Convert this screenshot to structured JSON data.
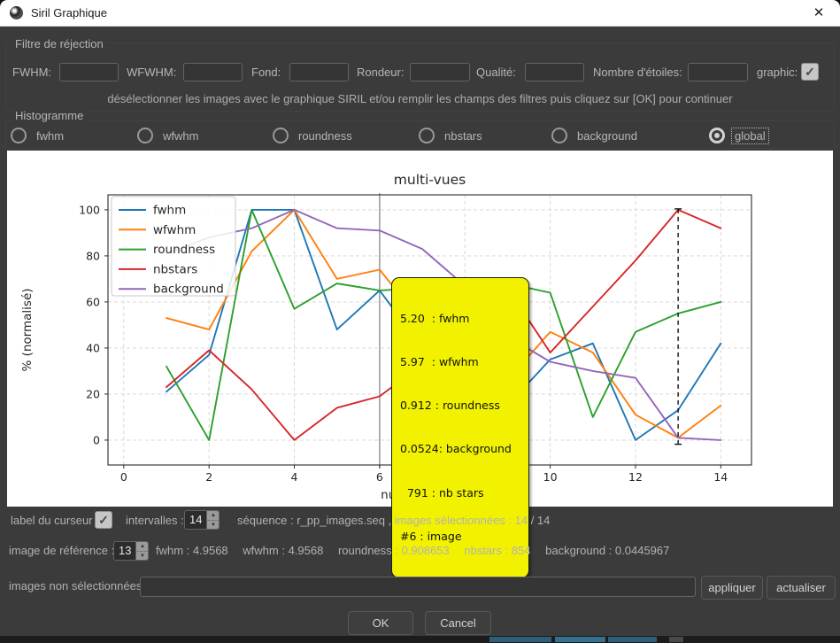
{
  "window": {
    "title": "Siril Graphique",
    "close_glyph": "✕"
  },
  "filter_section": {
    "title": "Filtre de réjection",
    "fields": [
      {
        "label": "FWHM:",
        "value": ""
      },
      {
        "label": "WFWHM:",
        "value": ""
      },
      {
        "label": "Fond:",
        "value": ""
      },
      {
        "label": "Rondeur:",
        "value": ""
      },
      {
        "label": "Qualité:",
        "value": ""
      },
      {
        "label": "Nombre d'étoiles:",
        "value": ""
      }
    ],
    "graphic_label": "graphic:",
    "graphic_checked": "✓",
    "instruction": "désélectionner les images avec le graphique SIRIL et/ou remplir les champs des filtres puis cliquez sur [OK] pour continuer"
  },
  "histogram_section": {
    "title": "Histogramme",
    "options": [
      {
        "label": "fwhm",
        "selected": false
      },
      {
        "label": "wfwhm",
        "selected": false
      },
      {
        "label": "roundness",
        "selected": false
      },
      {
        "label": "nbstars",
        "selected": false
      },
      {
        "label": "background",
        "selected": false
      },
      {
        "label": "global",
        "selected": true
      }
    ]
  },
  "chart_data": {
    "type": "line",
    "title": "multi-vues",
    "xlabel": "numéro d'image",
    "ylabel": "% (normalisé)",
    "x": [
      1,
      2,
      3,
      4,
      5,
      6,
      7,
      8,
      9,
      10,
      11,
      12,
      13,
      14
    ],
    "series": [
      {
        "name": "fwhm",
        "color": "#1f77b4",
        "values": [
          21,
          37,
          100,
          100,
          48,
          65,
          40,
          16,
          15,
          35,
          42,
          0,
          13,
          42
        ]
      },
      {
        "name": "wfwhm",
        "color": "#ff7f0e",
        "values": [
          53,
          48,
          82,
          100,
          70,
          74,
          51,
          28,
          26,
          47,
          38,
          11,
          1,
          15
        ]
      },
      {
        "name": "roundness",
        "color": "#2ca02c",
        "values": [
          32,
          0,
          100,
          57,
          68,
          65,
          66,
          66,
          68,
          64,
          10,
          47,
          55,
          60
        ]
      },
      {
        "name": "nbstars",
        "color": "#d62728",
        "values": [
          23,
          39,
          22,
          0,
          14,
          19,
          33,
          52,
          66,
          38,
          58,
          78,
          100,
          92
        ]
      },
      {
        "name": "background",
        "color": "#9467bd",
        "values": [
          81,
          88,
          92,
          100,
          92,
          91,
          83,
          67,
          45,
          34,
          30,
          27,
          1,
          0
        ]
      }
    ],
    "xticks": [
      0,
      2,
      4,
      6,
      8,
      10,
      12,
      14
    ],
    "yticks": [
      0,
      20,
      40,
      60,
      80,
      100
    ],
    "xlim": [
      -0.37,
      14.72
    ],
    "ylim": [
      -10.8,
      106.5
    ],
    "grid": true,
    "legend_position": "upper left",
    "cursor_image": 6,
    "reference_image": 13,
    "tooltip": {
      "bg": "#f2f200",
      "lines": [
        "5.20  : fwhm",
        "5.97  : wfwhm",
        "0.912 : roundness",
        "0.0524: background",
        "  791 : nb stars",
        "#6 : image"
      ]
    }
  },
  "status": {
    "cursor_label": "label du curseur",
    "cursor_checked": "✓",
    "intervals_label": "intervalles :",
    "intervals_value": "14",
    "sequence_info": "séquence : r_pp_images.seq ,  images sélectionnées : 14 / 14",
    "reference_label": "image de référence :",
    "reference_value": "13",
    "reference_stats": [
      "fwhm : 4.9568",
      "wfwhm : 4.9568",
      "roundness : 0.908653",
      "nbstars : 854",
      "background : 0.0445967"
    ],
    "unselected_label": "images non sélectionnées :",
    "unselected_value": "",
    "apply_button": "appliquer",
    "refresh_button": "actualiser"
  },
  "dialog_buttons": {
    "ok": "OK",
    "cancel": "Cancel"
  }
}
